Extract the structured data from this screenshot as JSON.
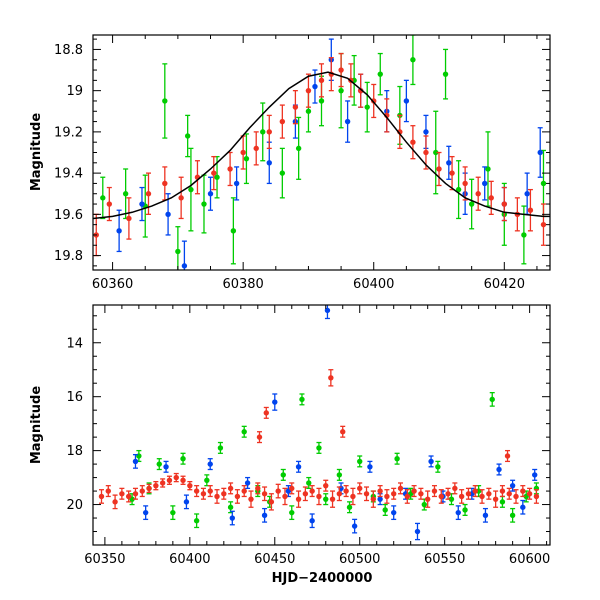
{
  "chart_data": [
    {
      "type": "scatter",
      "title": "",
      "xlabel": "",
      "ylabel": "Magnitude",
      "xlim": [
        60357,
        60427
      ],
      "ylim": [
        19.87,
        18.73
      ],
      "y_inverted": true,
      "grid": false,
      "legend": "none",
      "x_ticks": [
        60360,
        60380,
        60400,
        60420
      ],
      "x_tick_labels": [
        "60360",
        "60380",
        "60400",
        "60420"
      ],
      "y_ticks": [
        18.8,
        19,
        19.2,
        19.4,
        19.6,
        19.8
      ],
      "y_tick_labels": [
        "18.8",
        "19",
        "19.2",
        "19.4",
        "19.6",
        "19.8"
      ],
      "series": [
        {
          "color": "#00cc00",
          "x": [
            60358.5,
            60362.0,
            60365.0,
            60368.0,
            60370.0,
            60371.5,
            60372.0,
            60374.0,
            60376.0,
            60378.5,
            60380.5,
            60383.0,
            60386.0,
            60388.5,
            60390.0,
            60392.0,
            60395.0,
            60397.0,
            60399.0,
            60401.0,
            60404.0,
            60406.0,
            60409.5,
            60411.0,
            60413.0,
            60415.0,
            60417.5,
            60420.0,
            60423.0,
            60426.0
          ],
          "y": [
            19.52,
            19.5,
            19.56,
            19.05,
            19.78,
            19.22,
            19.48,
            19.55,
            19.42,
            19.68,
            19.33,
            19.2,
            19.4,
            19.28,
            19.1,
            19.05,
            19.0,
            18.95,
            19.08,
            18.92,
            19.12,
            18.85,
            19.3,
            18.92,
            19.48,
            19.55,
            19.38,
            19.6,
            19.7,
            19.45
          ],
          "yerr": [
            0.1,
            0.12,
            0.15,
            0.18,
            0.12,
            0.1,
            0.2,
            0.14,
            0.1,
            0.16,
            0.12,
            0.14,
            0.12,
            0.15,
            0.1,
            0.12,
            0.18,
            0.12,
            0.12,
            0.1,
            0.14,
            0.12,
            0.2,
            0.12,
            0.14,
            0.12,
            0.18,
            0.15,
            0.14,
            0.16
          ]
        },
        {
          "color": "#0044ee",
          "x": [
            60361.0,
            60364.5,
            60368.5,
            60371.0,
            60375.0,
            60379.0,
            60384.0,
            60388.0,
            60391.0,
            60393.5,
            60396.0,
            60398.0,
            60402.0,
            60405.0,
            60408.0,
            60411.5,
            60414.0,
            60417.0,
            60420.0,
            60423.5,
            60425.5
          ],
          "y": [
            19.68,
            19.55,
            19.6,
            19.85,
            19.5,
            19.45,
            19.35,
            19.15,
            18.98,
            18.85,
            19.15,
            19.0,
            19.1,
            19.05,
            19.2,
            19.35,
            19.5,
            19.45,
            19.55,
            19.5,
            19.3
          ],
          "yerr": [
            0.1,
            0.08,
            0.1,
            0.12,
            0.08,
            0.08,
            0.1,
            0.08,
            0.08,
            0.1,
            0.1,
            0.08,
            0.1,
            0.1,
            0.08,
            0.08,
            0.1,
            0.08,
            0.08,
            0.1,
            0.12
          ]
        },
        {
          "color": "#ee3322",
          "x": [
            60357.5,
            60359.5,
            60362.5,
            60365.5,
            60368.0,
            60370.5,
            60373.0,
            60375.5,
            60378.0,
            60380.0,
            60382.0,
            60384.0,
            60386.0,
            60388.0,
            60390.0,
            60392.0,
            60393.5,
            60395.0,
            60396.5,
            60398.0,
            60400.0,
            60402.0,
            60404.0,
            60406.0,
            60408.0,
            60410.0,
            60412.0,
            60414.0,
            60416.0,
            60418.0,
            60420.0,
            60422.0,
            60424.0,
            60426.0
          ],
          "y": [
            19.7,
            19.55,
            19.62,
            19.5,
            19.45,
            19.52,
            19.42,
            19.4,
            19.38,
            19.3,
            19.28,
            19.2,
            19.15,
            19.08,
            19.0,
            18.95,
            18.92,
            18.9,
            18.95,
            19.0,
            19.05,
            19.12,
            19.2,
            19.25,
            19.3,
            19.38,
            19.4,
            19.45,
            19.5,
            19.52,
            19.55,
            19.6,
            19.58,
            19.65
          ],
          "yerr": [
            0.1,
            0.08,
            0.1,
            0.1,
            0.08,
            0.1,
            0.08,
            0.08,
            0.08,
            0.08,
            0.08,
            0.08,
            0.08,
            0.08,
            0.08,
            0.08,
            0.08,
            0.08,
            0.08,
            0.08,
            0.08,
            0.08,
            0.08,
            0.08,
            0.08,
            0.08,
            0.08,
            0.08,
            0.08,
            0.08,
            0.08,
            0.08,
            0.1,
            0.1
          ]
        }
      ],
      "model_curve": {
        "color": "#000000",
        "x": [
          60357,
          60360,
          60363,
          60366,
          60369,
          60372,
          60375,
          60378,
          60381,
          60384,
          60387,
          60390,
          60393,
          60396,
          60399,
          60402,
          60405,
          60408,
          60411,
          60414,
          60417,
          60420,
          60423,
          60426,
          60427
        ],
        "y": [
          19.62,
          19.61,
          19.59,
          19.56,
          19.52,
          19.46,
          19.38,
          19.29,
          19.18,
          19.08,
          18.99,
          18.93,
          18.91,
          18.94,
          19.02,
          19.13,
          19.25,
          19.36,
          19.45,
          19.52,
          19.56,
          19.59,
          19.6,
          19.61,
          19.61
        ]
      }
    },
    {
      "type": "scatter",
      "title": "",
      "xlabel": "HJD−2400000",
      "ylabel": "Magnitude",
      "xlim": [
        60343,
        60612
      ],
      "ylim": [
        21.5,
        12.6
      ],
      "y_inverted": true,
      "grid": false,
      "legend": "none",
      "x_ticks": [
        60350,
        60400,
        60450,
        60500,
        60550,
        60600
      ],
      "x_tick_labels": [
        "60350",
        "60400",
        "60450",
        "60500",
        "60550",
        "60600"
      ],
      "y_ticks": [
        14,
        16,
        18,
        20
      ],
      "y_tick_labels": [
        "14",
        "16",
        "18",
        "20"
      ],
      "series": [
        {
          "color": "#00cc00",
          "x": [
            60366,
            60370,
            60376,
            60382,
            60390,
            60396,
            60404,
            60410,
            60418,
            60424,
            60432,
            60440,
            60447,
            60455,
            60460,
            60466,
            60470,
            60476,
            60480,
            60488,
            60494,
            60500,
            60508,
            60515,
            60522,
            60530,
            60538,
            60546,
            60554,
            60562,
            60570,
            60578,
            60584,
            60590,
            60598,
            60604
          ],
          "y": [
            19.8,
            18.2,
            19.4,
            18.5,
            20.3,
            18.3,
            20.6,
            19.1,
            17.9,
            20.1,
            17.3,
            19.5,
            19.9,
            18.9,
            20.3,
            16.1,
            19.2,
            17.9,
            19.8,
            18.9,
            20.1,
            18.4,
            19.7,
            20.2,
            18.3,
            19.6,
            20.0,
            18.6,
            19.8,
            20.2,
            19.5,
            16.1,
            19.9,
            20.4,
            19.7,
            19.4
          ],
          "yerr": [
            0.2,
            0.2,
            0.2,
            0.2,
            0.25,
            0.2,
            0.25,
            0.2,
            0.2,
            0.2,
            0.2,
            0.2,
            0.2,
            0.2,
            0.25,
            0.2,
            0.2,
            0.2,
            0.2,
            0.2,
            0.2,
            0.2,
            0.2,
            0.2,
            0.2,
            0.2,
            0.2,
            0.2,
            0.2,
            0.2,
            0.2,
            0.25,
            0.2,
            0.25,
            0.2,
            0.2
          ]
        },
        {
          "color": "#0044ee",
          "x": [
            60368,
            60374,
            60386,
            60398,
            60412,
            60425,
            60434,
            60444,
            60450,
            60458,
            60464,
            60472,
            60481,
            60489,
            60497,
            60506,
            60512,
            60520,
            60527,
            60534,
            60542,
            60549,
            60558,
            60566,
            60574,
            60582,
            60590,
            60596,
            60603
          ],
          "y": [
            18.4,
            20.3,
            18.6,
            19.9,
            18.5,
            20.5,
            19.2,
            20.4,
            16.2,
            19.5,
            18.6,
            20.6,
            12.8,
            19.4,
            20.8,
            18.6,
            19.8,
            20.3,
            19.6,
            21.0,
            18.4,
            19.7,
            20.3,
            19.6,
            20.4,
            18.7,
            19.3,
            20.1,
            18.9
          ],
          "yerr": [
            0.25,
            0.25,
            0.2,
            0.25,
            0.2,
            0.25,
            0.2,
            0.25,
            0.3,
            0.2,
            0.2,
            0.25,
            0.3,
            0.2,
            0.25,
            0.2,
            0.2,
            0.25,
            0.2,
            0.3,
            0.2,
            0.2,
            0.25,
            0.2,
            0.25,
            0.2,
            0.2,
            0.25,
            0.2
          ]
        },
        {
          "color": "#ee3322",
          "x": [
            60348,
            60352,
            60356,
            60360,
            60364,
            60368,
            60372,
            60376,
            60380,
            60384,
            60388,
            60392,
            60396,
            60400,
            60404,
            60408,
            60412,
            60416,
            60420,
            60424,
            60428,
            60432,
            60436,
            60440,
            60444,
            60448,
            60452,
            60456,
            60460,
            60464,
            60468,
            60472,
            60476,
            60480,
            60484,
            60488,
            60492,
            60496,
            60500,
            60504,
            60508,
            60512,
            60516,
            60520,
            60524,
            60528,
            60532,
            60536,
            60540,
            60544,
            60548,
            60552,
            60556,
            60560,
            60564,
            60568,
            60572,
            60576,
            60580,
            60584,
            60588,
            60592,
            60596,
            60600,
            60604,
            60441,
            60483,
            60445,
            60490,
            60587
          ],
          "y": [
            19.7,
            19.5,
            19.9,
            19.6,
            19.7,
            19.6,
            19.5,
            19.4,
            19.3,
            19.2,
            19.1,
            19.0,
            19.1,
            19.3,
            19.5,
            19.6,
            19.5,
            19.7,
            19.6,
            19.4,
            19.7,
            19.5,
            19.8,
            19.4,
            19.6,
            19.9,
            19.5,
            19.7,
            19.4,
            19.8,
            19.6,
            19.5,
            19.7,
            19.3,
            19.8,
            19.6,
            19.5,
            19.7,
            19.4,
            19.6,
            19.8,
            19.5,
            19.7,
            19.6,
            19.4,
            19.7,
            19.5,
            19.6,
            19.8,
            19.5,
            19.7,
            19.6,
            19.4,
            19.7,
            19.6,
            19.5,
            19.7,
            19.6,
            19.8,
            19.5,
            19.6,
            19.7,
            19.5,
            19.6,
            19.7,
            17.5,
            15.3,
            16.6,
            17.3,
            18.2
          ],
          "yerr": [
            0.25,
            0.2,
            0.25,
            0.2,
            0.2,
            0.2,
            0.2,
            0.15,
            0.15,
            0.15,
            0.15,
            0.15,
            0.15,
            0.15,
            0.2,
            0.2,
            0.2,
            0.25,
            0.2,
            0.2,
            0.25,
            0.2,
            0.3,
            0.2,
            0.25,
            0.3,
            0.25,
            0.3,
            0.2,
            0.3,
            0.25,
            0.2,
            0.3,
            0.2,
            0.3,
            0.25,
            0.2,
            0.3,
            0.2,
            0.25,
            0.3,
            0.2,
            0.25,
            0.2,
            0.2,
            0.25,
            0.2,
            0.2,
            0.3,
            0.2,
            0.25,
            0.2,
            0.2,
            0.25,
            0.2,
            0.2,
            0.25,
            0.2,
            0.3,
            0.2,
            0.2,
            0.25,
            0.2,
            0.2,
            0.25,
            0.2,
            0.3,
            0.2,
            0.2,
            0.2
          ]
        }
      ]
    }
  ]
}
